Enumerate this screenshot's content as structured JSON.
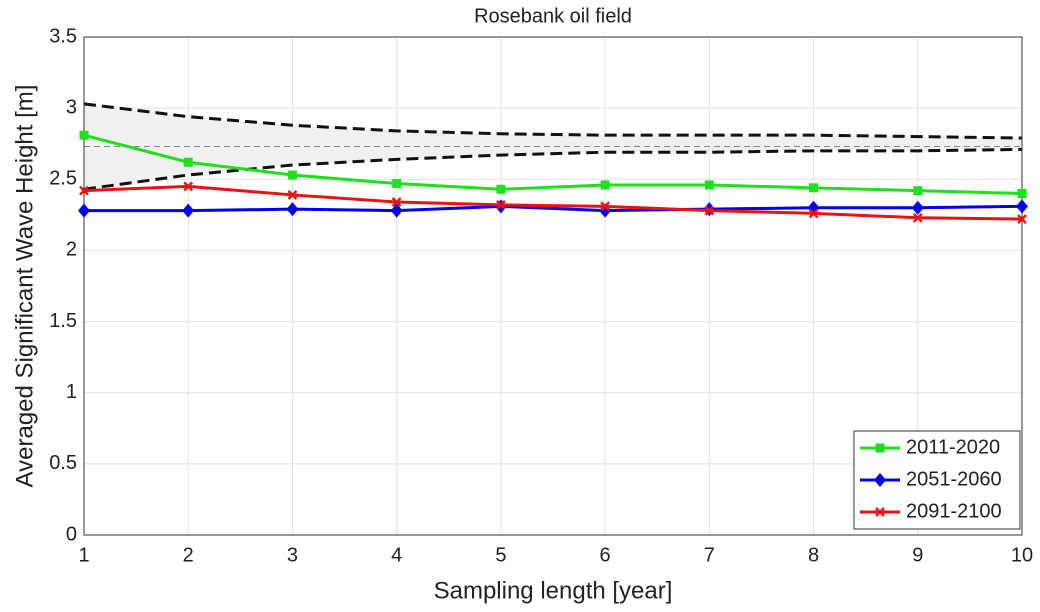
{
  "chart_data": {
    "type": "line",
    "title": "Rosebank oil field",
    "x_label": "Sampling length [year]",
    "y_label": "Averaged Significant Wave Height [m]",
    "x": [
      1,
      2,
      3,
      4,
      5,
      6,
      7,
      8,
      9,
      10
    ],
    "xlim": [
      1,
      10
    ],
    "xticks": [
      1,
      2,
      3,
      4,
      5,
      6,
      7,
      8,
      9,
      10
    ],
    "ylim": [
      0,
      3.5
    ],
    "yticks": [
      0,
      0.5,
      1,
      1.5,
      2,
      2.5,
      3,
      3.5
    ],
    "grid": true,
    "legend_position": "lower right",
    "series": [
      {
        "name": "2011-2020",
        "color": "#1ee01e",
        "marker": "square",
        "values": [
          2.81,
          2.62,
          2.53,
          2.47,
          2.43,
          2.46,
          2.46,
          2.44,
          2.42,
          2.4
        ]
      },
      {
        "name": "2051-2060",
        "color": "#0000ee",
        "marker": "diamond",
        "values": [
          2.28,
          2.28,
          2.29,
          2.28,
          2.31,
          2.28,
          2.29,
          2.3,
          2.3,
          2.31
        ]
      },
      {
        "name": "2091-2100",
        "color": "#e81414",
        "marker": "x",
        "values": [
          2.42,
          2.45,
          2.39,
          2.34,
          2.32,
          2.31,
          2.28,
          2.26,
          2.23,
          2.22
        ]
      }
    ],
    "shaded_band": {
      "upper": [
        3.03,
        2.94,
        2.88,
        2.84,
        2.82,
        2.81,
        2.81,
        2.81,
        2.8,
        2.79
      ],
      "lower": [
        2.43,
        2.53,
        2.6,
        2.64,
        2.67,
        2.69,
        2.69,
        2.7,
        2.7,
        2.71
      ],
      "mean": 2.73,
      "color": "#f0f0f0"
    }
  }
}
